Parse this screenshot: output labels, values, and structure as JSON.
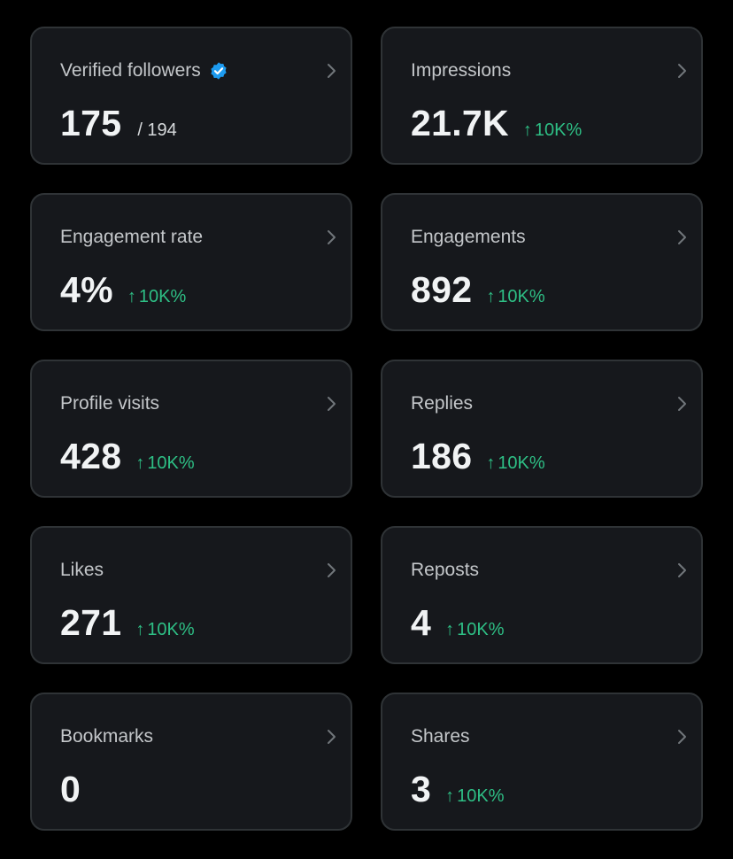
{
  "colors": {
    "background": "#000000",
    "card": "#16181c",
    "border": "#2f3336",
    "positive": "#2ebf85",
    "verified": "#1d9bf0"
  },
  "cards": [
    {
      "label": "Verified followers",
      "value": "175",
      "secondary": "/ 194",
      "icon": "verified-badge-icon"
    },
    {
      "label": "Impressions",
      "value": "21.7K",
      "arrow": "↑",
      "change": "10K%"
    },
    {
      "label": "Engagement rate",
      "value": "4%",
      "arrow": "↑",
      "change": "10K%"
    },
    {
      "label": "Engagements",
      "value": "892",
      "arrow": "↑",
      "change": "10K%"
    },
    {
      "label": "Profile visits",
      "value": "428",
      "arrow": "↑",
      "change": "10K%"
    },
    {
      "label": "Replies",
      "value": "186",
      "arrow": "↑",
      "change": "10K%"
    },
    {
      "label": "Likes",
      "value": "271",
      "arrow": "↑",
      "change": "10K%"
    },
    {
      "label": "Reposts",
      "value": "4",
      "arrow": "↑",
      "change": "10K%"
    },
    {
      "label": "Bookmarks",
      "value": "0"
    },
    {
      "label": "Shares",
      "value": "3",
      "arrow": "↑",
      "change": "10K%"
    }
  ]
}
